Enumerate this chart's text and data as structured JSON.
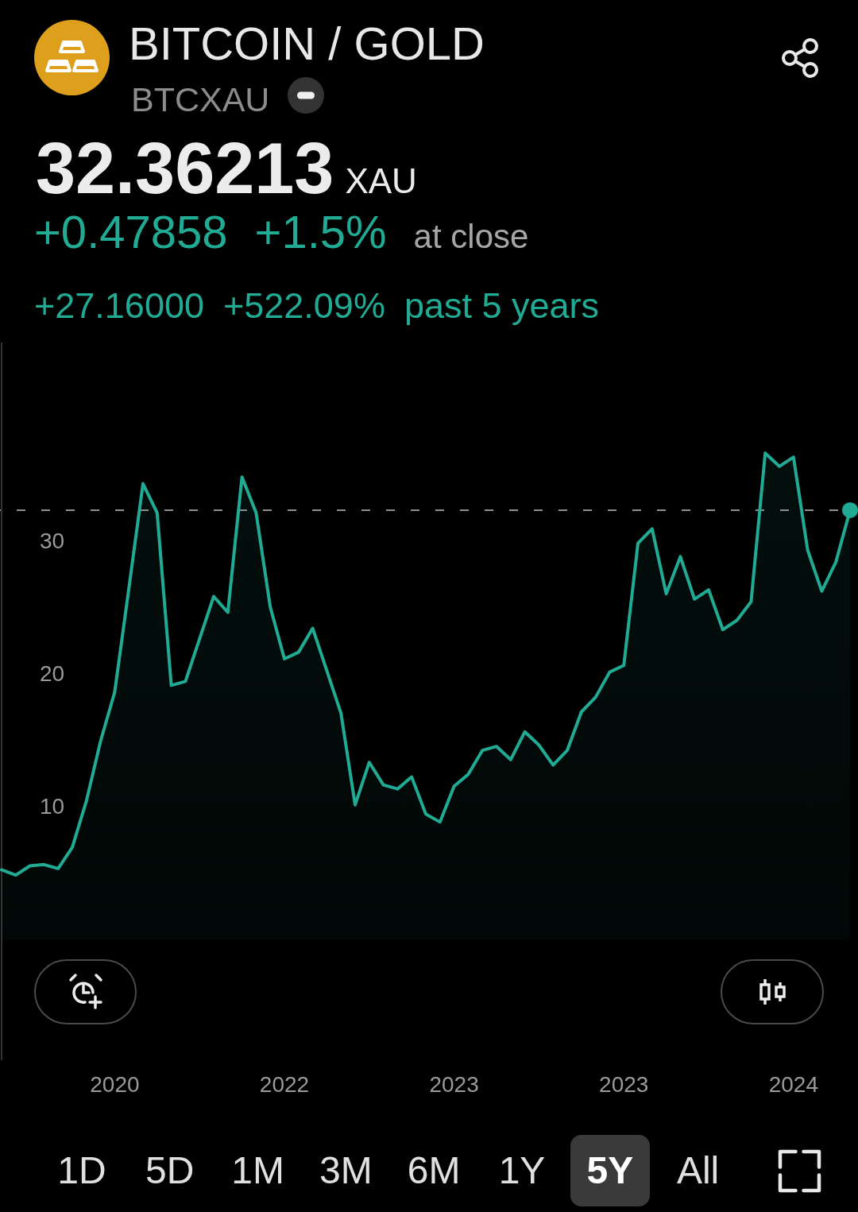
{
  "chart_data": {
    "type": "area",
    "title": "BITCOIN / GOLD",
    "subtitle": "BTCXAU",
    "annotations": [
      "32.36213",
      "XAU",
      "+0.47858",
      "+1.5%",
      "at close",
      "+27.16000",
      "+522.09%",
      "past 5 years",
      "1D",
      "5D",
      "1M",
      "3M",
      "6M",
      "1Y",
      "5Y",
      "All"
    ],
    "categories": [
      null,
      null,
      null,
      null,
      null,
      null,
      null,
      null,
      "2020",
      null,
      null,
      null,
      null,
      null,
      null,
      null,
      null,
      null,
      null,
      null,
      "2022",
      null,
      null,
      null,
      null,
      null,
      null,
      null,
      null,
      null,
      null,
      null,
      "2023",
      null,
      null,
      null,
      null,
      null,
      null,
      null,
      null,
      null,
      null,
      null,
      "2023",
      null,
      null,
      null,
      null,
      null,
      null,
      null,
      null,
      null,
      null,
      null,
      "2024",
      null,
      null,
      null,
      null
    ],
    "series": [
      {
        "color": "#22ab94",
        "values": [
          5.3,
          4.9,
          5.6,
          5.7,
          5.4,
          7.0,
          10.5,
          15.0,
          18.7,
          26.5,
          34.4,
          32.2,
          19.2,
          19.5,
          22.7,
          25.9,
          24.7,
          34.9,
          32.2,
          25.1,
          21.2,
          21.7,
          23.5,
          20.3,
          17.1,
          10.2,
          13.4,
          11.7,
          11.4,
          12.3,
          9.5,
          8.9,
          11.6,
          12.5,
          14.3,
          14.6,
          13.6,
          15.7,
          14.7,
          13.2,
          14.3,
          17.2,
          18.3,
          20.2,
          20.7,
          29.9,
          31.0,
          26.1,
          28.9,
          25.7,
          26.4,
          23.4,
          24.1,
          25.5,
          36.7,
          35.7,
          36.4,
          29.4,
          26.3,
          28.5,
          32.4
        ]
      },
      {
        "type": "scatter",
        "color": "#22ab94",
        "values": [
          null,
          null,
          null,
          null,
          null,
          null,
          null,
          null,
          null,
          null,
          null,
          null,
          null,
          null,
          null,
          null,
          null,
          null,
          null,
          null,
          null,
          null,
          null,
          null,
          null,
          null,
          null,
          null,
          null,
          null,
          null,
          null,
          null,
          null,
          null,
          null,
          null,
          null,
          null,
          null,
          null,
          null,
          null,
          null,
          null,
          null,
          null,
          null,
          null,
          null,
          null,
          null,
          null,
          null,
          null,
          null,
          null,
          null,
          null,
          null,
          32.4
        ]
      }
    ],
    "ylim": [
      -9,
      45
    ],
    "yticks": [
      10,
      20,
      30
    ],
    "ref_lines": [
      {
        "axis": "y",
        "value": 32.4,
        "color": "#8f8f8f",
        "line_style": "dashed"
      }
    ],
    "grid": false,
    "legend": false
  }
}
